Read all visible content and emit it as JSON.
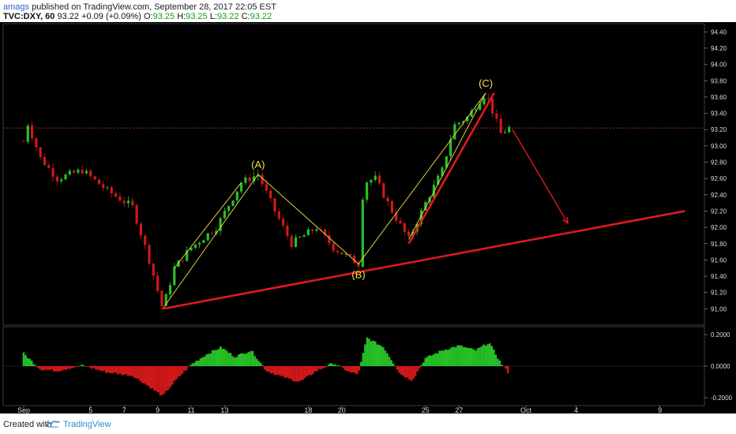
{
  "header": {
    "user": "amags",
    "published": "published on TradingView.com, September 28, 2017 22:05 EST",
    "symbol": "TVC:DXY, 60",
    "last": "93.22",
    "change": "+0.09 (+0.09%)",
    "open_label": "O:",
    "open": "93.25",
    "high_label": "H:",
    "high": "93.25",
    "low_label": "L:",
    "low": "93.22",
    "close_label": "C:",
    "close": "93.22"
  },
  "footer": {
    "created_with": "Created with",
    "brand": "TradingView"
  },
  "colors": {
    "background": "#000000",
    "up": "#26c026",
    "down": "#d01818",
    "trend": "#e0191f",
    "wave": "#f5e04a",
    "price_line": "#c0302a"
  },
  "chart_data": {
    "type": "candlestick",
    "price_axis": {
      "ticks": [
        94.4,
        94.2,
        94.0,
        93.8,
        93.6,
        93.4,
        93.2,
        93.0,
        92.8,
        92.6,
        92.4,
        92.2,
        92.0,
        91.8,
        91.6,
        91.4,
        91.2,
        91.0
      ],
      "current": 93.22,
      "ylim": [
        90.8,
        94.5
      ]
    },
    "osc_axis": {
      "ticks": [
        0.2,
        0.0,
        -0.2
      ],
      "labels": [
        "0.2000",
        "0.0000",
        "-0.2000"
      ],
      "ylim": [
        -0.25,
        0.25
      ]
    },
    "x_ticks": [
      "Sep",
      "5",
      "7",
      "9",
      "11",
      "13",
      "18",
      "20",
      "25",
      "27",
      "Oct",
      "4",
      "9"
    ],
    "x_tick_days": [
      1,
      5,
      7,
      9,
      11,
      13,
      18,
      20,
      25,
      27,
      31,
      34,
      39
    ],
    "anchors": [
      {
        "d": 1.0,
        "p": 93.05
      },
      {
        "d": 1.2,
        "p": 93.3
      },
      {
        "d": 2.0,
        "p": 92.85
      },
      {
        "d": 3.0,
        "p": 92.6
      },
      {
        "d": 4.5,
        "p": 92.7
      },
      {
        "d": 6.0,
        "p": 92.45
      },
      {
        "d": 7.5,
        "p": 92.25
      },
      {
        "d": 8.5,
        "p": 91.6
      },
      {
        "d": 9.3,
        "p": 91.0
      },
      {
        "d": 10.0,
        "p": 91.5
      },
      {
        "d": 11.0,
        "p": 91.75
      },
      {
        "d": 12.5,
        "p": 92.0
      },
      {
        "d": 14.0,
        "p": 92.55
      },
      {
        "d": 15.0,
        "p": 92.65
      },
      {
        "d": 16.0,
        "p": 92.2
      },
      {
        "d": 17.0,
        "p": 91.8
      },
      {
        "d": 18.5,
        "p": 92.0
      },
      {
        "d": 19.5,
        "p": 91.75
      },
      {
        "d": 21.0,
        "p": 91.55
      },
      {
        "d": 21.3,
        "p": 92.55
      },
      {
        "d": 22.0,
        "p": 92.6
      },
      {
        "d": 23.0,
        "p": 92.2
      },
      {
        "d": 24.0,
        "p": 91.85
      },
      {
        "d": 25.0,
        "p": 92.3
      },
      {
        "d": 26.0,
        "p": 92.7
      },
      {
        "d": 26.7,
        "p": 93.25
      },
      {
        "d": 27.5,
        "p": 93.35
      },
      {
        "d": 28.6,
        "p": 93.65
      },
      {
        "d": 29.5,
        "p": 93.15
      },
      {
        "d": 30.0,
        "p": 93.22
      }
    ],
    "osc_anchors": [
      {
        "d": 1.0,
        "v": 0.08
      },
      {
        "d": 2.0,
        "v": -0.02
      },
      {
        "d": 3.0,
        "v": -0.03
      },
      {
        "d": 4.5,
        "v": 0.005
      },
      {
        "d": 6.0,
        "v": -0.04
      },
      {
        "d": 7.5,
        "v": -0.06
      },
      {
        "d": 8.5,
        "v": -0.13
      },
      {
        "d": 9.3,
        "v": -0.19
      },
      {
        "d": 10.0,
        "v": -0.1
      },
      {
        "d": 11.0,
        "v": 0.01
      },
      {
        "d": 12.0,
        "v": 0.08
      },
      {
        "d": 12.8,
        "v": 0.12
      },
      {
        "d": 13.6,
        "v": 0.06
      },
      {
        "d": 14.6,
        "v": 0.1
      },
      {
        "d": 15.5,
        "v": -0.03
      },
      {
        "d": 16.5,
        "v": -0.07
      },
      {
        "d": 17.5,
        "v": -0.1
      },
      {
        "d": 18.5,
        "v": -0.03
      },
      {
        "d": 19.5,
        "v": 0.02
      },
      {
        "d": 20.5,
        "v": -0.04
      },
      {
        "d": 21.0,
        "v": -0.05
      },
      {
        "d": 21.5,
        "v": 0.18
      },
      {
        "d": 22.5,
        "v": 0.12
      },
      {
        "d": 23.5,
        "v": -0.05
      },
      {
        "d": 24.2,
        "v": -0.09
      },
      {
        "d": 25.0,
        "v": 0.05
      },
      {
        "d": 26.0,
        "v": 0.1
      },
      {
        "d": 27.0,
        "v": 0.13
      },
      {
        "d": 28.0,
        "v": 0.1
      },
      {
        "d": 28.8,
        "v": 0.15
      },
      {
        "d": 29.5,
        "v": 0.02
      },
      {
        "d": 30.0,
        "v": -0.05
      }
    ],
    "annotations": [
      {
        "text": "(A)",
        "d": 15.0,
        "p": 92.65,
        "pos": "above"
      },
      {
        "text": "(B)",
        "d": 21.0,
        "p": 91.55,
        "pos": "below"
      },
      {
        "text": "(C)",
        "d": 28.6,
        "p": 93.65,
        "pos": "above"
      }
    ],
    "wave_lines": [
      [
        {
          "d": 9.3,
          "p": 91.0
        },
        {
          "d": 15.0,
          "p": 92.65
        },
        {
          "d": 21.0,
          "p": 91.55
        },
        {
          "d": 28.6,
          "p": 93.65
        }
      ],
      [
        {
          "d": 10.0,
          "p": 91.5
        },
        {
          "d": 14.0,
          "p": 92.55
        }
      ],
      [
        {
          "d": 24.0,
          "p": 91.85
        },
        {
          "d": 28.6,
          "p": 93.65
        }
      ]
    ],
    "trend_lines": [
      {
        "from": {
          "d": 9.3,
          "p": 91.0
        },
        "to": {
          "d": 40.5,
          "p": 92.2
        },
        "color": "#e0191f"
      },
      {
        "from": {
          "d": 24.0,
          "p": 91.8
        },
        "to": {
          "d": 29.1,
          "p": 93.65
        },
        "color": "#e0191f"
      }
    ],
    "arrow": {
      "from": {
        "d": 30.2,
        "p": 93.2
      },
      "to": {
        "d": 33.5,
        "p": 92.05
      }
    }
  }
}
